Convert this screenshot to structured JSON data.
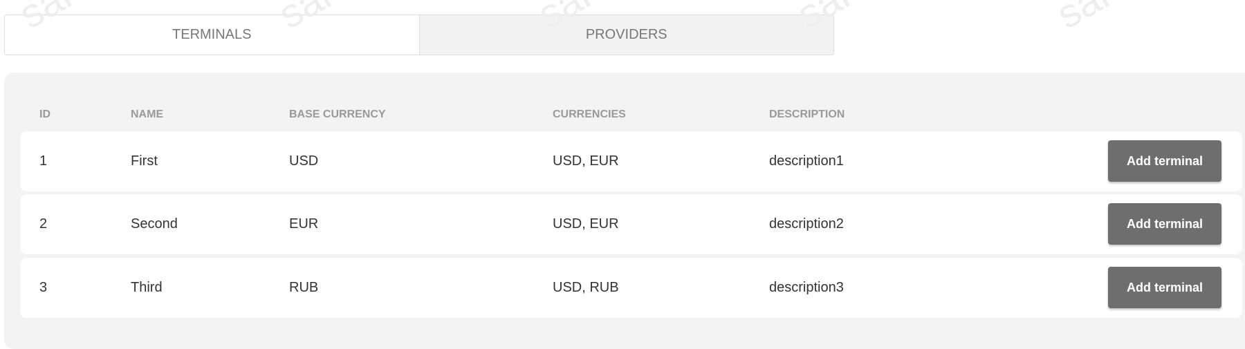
{
  "watermark": "sandbox",
  "tabs": [
    {
      "label": "TERMINALS",
      "active": true
    },
    {
      "label": "PROVIDERS",
      "active": false
    }
  ],
  "table": {
    "headers": [
      "ID",
      "NAME",
      "BASE CURRENCY",
      "CURRENCIES",
      "DESCRIPTION"
    ],
    "rows": [
      {
        "id": "1",
        "name": "First",
        "base_currency": "USD",
        "currencies": "USD, EUR",
        "description": "description1",
        "action": "Add terminal"
      },
      {
        "id": "2",
        "name": "Second",
        "base_currency": "EUR",
        "currencies": "USD, EUR",
        "description": "description2",
        "action": "Add terminal"
      },
      {
        "id": "3",
        "name": "Third",
        "base_currency": "RUB",
        "currencies": "USD, RUB",
        "description": "description3",
        "action": "Add terminal"
      }
    ]
  },
  "colors": {
    "button": "#6e6e6e",
    "panel": "#f3f3f3",
    "header_text": "#999999"
  }
}
